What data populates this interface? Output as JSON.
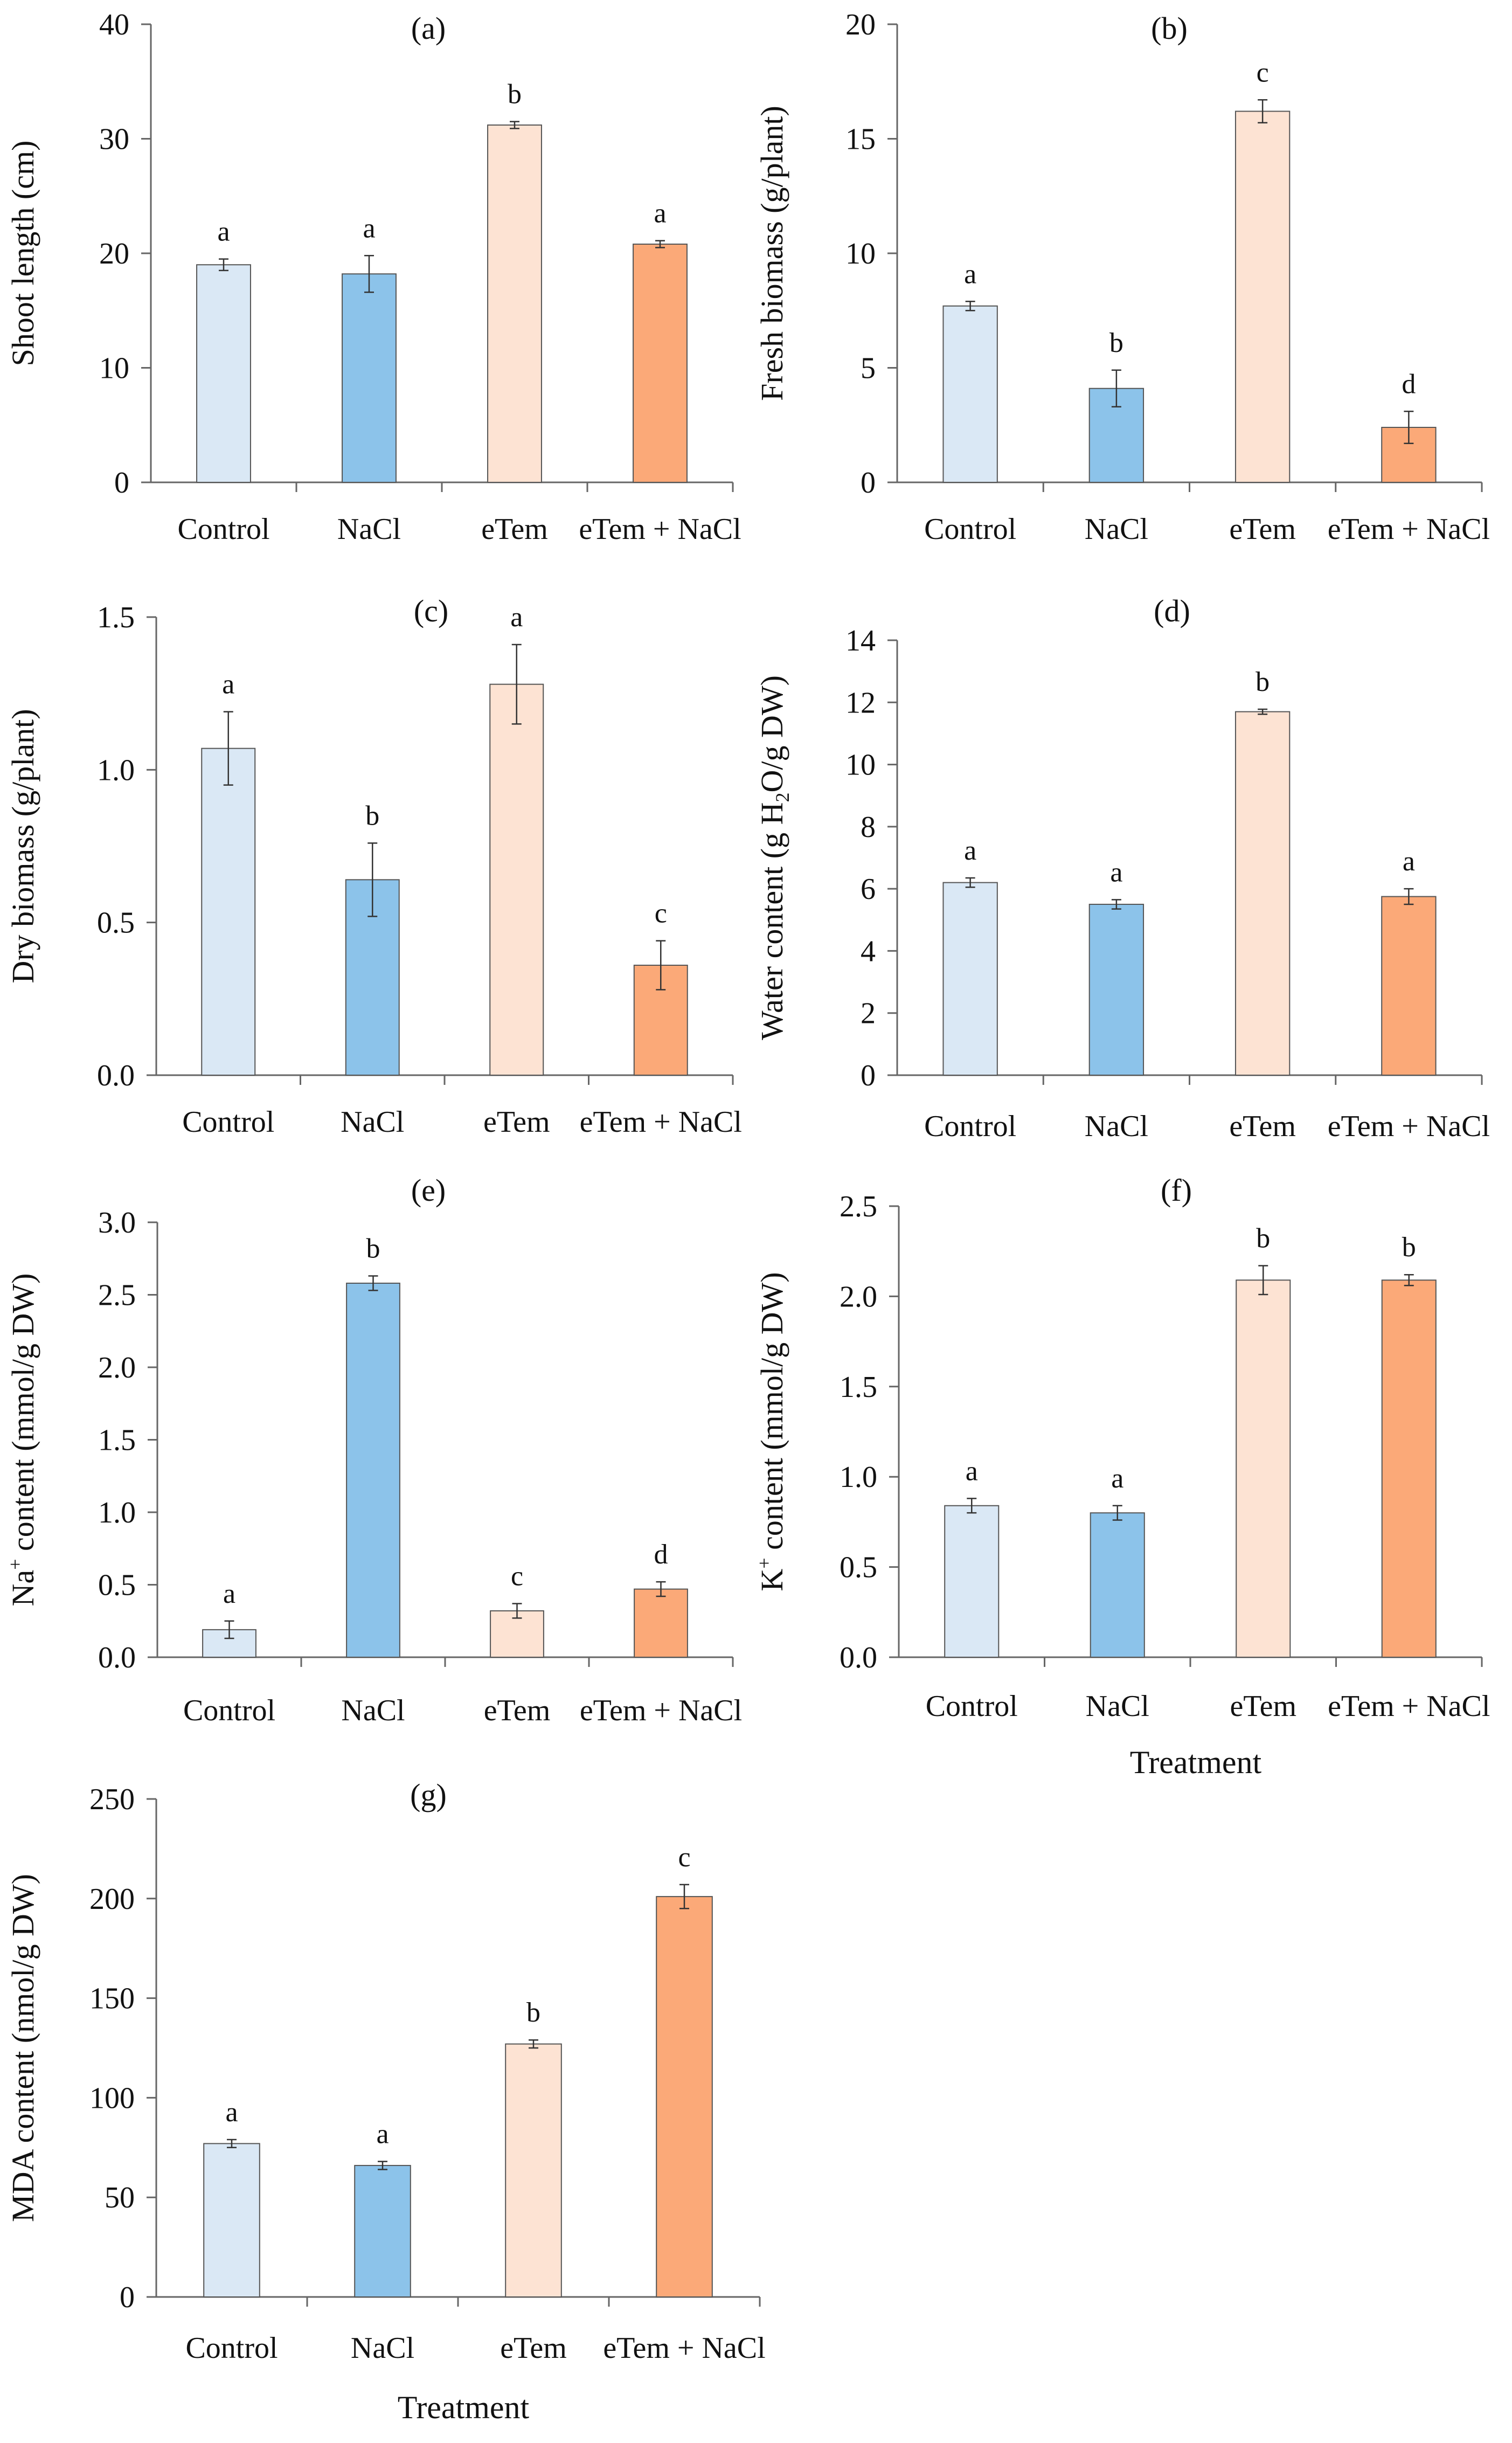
{
  "colors": {
    "Control": "#dae8f5",
    "NaCl": "#8cc3ea",
    "eTem": "#fde3d3",
    "eTem + NaCl": "#fba978",
    "bar_stroke": "#555555",
    "axis": "#666666"
  },
  "chart_data": [
    {
      "id": "a",
      "type": "bar",
      "title": "(a)",
      "ylabel": "Shoot length (cm)",
      "xlabel": "",
      "ylim": [
        0,
        40
      ],
      "yticks": [
        0,
        10,
        20,
        30,
        40
      ],
      "ytick_labels": [
        "0",
        "10",
        "20",
        "30",
        "40"
      ],
      "categories": [
        "Control",
        "NaCl",
        "eTem",
        "eTem + NaCl"
      ],
      "values": [
        19.0,
        18.2,
        31.2,
        20.8
      ],
      "errors": [
        0.5,
        1.6,
        0.3,
        0.3
      ],
      "letters": [
        "a",
        "a",
        "b",
        "a"
      ]
    },
    {
      "id": "b",
      "type": "bar",
      "title": "(b)",
      "ylabel": "Fresh biomass (g/plant)",
      "xlabel": "",
      "ylim": [
        0,
        20
      ],
      "yticks": [
        0,
        5,
        10,
        15,
        20
      ],
      "ytick_labels": [
        "0",
        "5",
        "10",
        "15",
        "20"
      ],
      "categories": [
        "Control",
        "NaCl",
        "eTem",
        "eTem + NaCl"
      ],
      "values": [
        7.7,
        4.1,
        16.2,
        2.4
      ],
      "errors": [
        0.2,
        0.8,
        0.5,
        0.7
      ],
      "letters": [
        "a",
        "b",
        "c",
        "d"
      ]
    },
    {
      "id": "c",
      "type": "bar",
      "title": "(c)",
      "ylabel": "Dry biomass (g/plant)",
      "xlabel": "",
      "ylim": [
        0,
        1.5
      ],
      "yticks": [
        0,
        0.5,
        1.0,
        1.5
      ],
      "ytick_labels": [
        "0.0",
        "0.5",
        "1.0",
        "1.5"
      ],
      "categories": [
        "Control",
        "NaCl",
        "eTem",
        "eTem + NaCl"
      ],
      "values": [
        1.07,
        0.64,
        1.28,
        0.36
      ],
      "errors": [
        0.12,
        0.12,
        0.13,
        0.08
      ],
      "letters": [
        "a",
        "b",
        "a",
        "c"
      ]
    },
    {
      "id": "d",
      "type": "bar",
      "title": "(d)",
      "ylabel_parts": [
        "Water content (g H",
        "2",
        "O/g DW)"
      ],
      "xlabel": "",
      "ylim": [
        0,
        14
      ],
      "yticks": [
        0,
        2,
        4,
        6,
        8,
        10,
        12,
        14
      ],
      "ytick_labels": [
        "0",
        "2",
        "4",
        "6",
        "8",
        "10",
        "12",
        "14"
      ],
      "categories": [
        "Control",
        "NaCl",
        "eTem",
        "eTem + NaCl"
      ],
      "values": [
        6.2,
        5.5,
        11.7,
        5.75
      ],
      "errors": [
        0.15,
        0.15,
        0.08,
        0.25
      ],
      "letters": [
        "a",
        "a",
        "b",
        "a"
      ]
    },
    {
      "id": "e",
      "type": "bar",
      "title": "(e)",
      "ylabel_parts": [
        "Na",
        "+",
        " content (mmol/g DW)"
      ],
      "xlabel": "",
      "ylim": [
        0,
        3.0
      ],
      "yticks": [
        0,
        0.5,
        1.0,
        1.5,
        2.0,
        2.5,
        3.0
      ],
      "ytick_labels": [
        "0.0",
        "0.5",
        "1.0",
        "1.5",
        "2.0",
        "2.5",
        "3.0"
      ],
      "categories": [
        "Control",
        "NaCl",
        "eTem",
        "eTem + NaCl"
      ],
      "values": [
        0.19,
        2.58,
        0.32,
        0.47
      ],
      "errors": [
        0.06,
        0.05,
        0.05,
        0.05
      ],
      "letters": [
        "a",
        "b",
        "c",
        "d"
      ]
    },
    {
      "id": "f",
      "type": "bar",
      "title": "(f)",
      "ylabel_parts": [
        "K",
        "+",
        " content (mmol/g DW)"
      ],
      "xlabel": "Treatment",
      "ylim": [
        0,
        2.5
      ],
      "yticks": [
        0,
        0.5,
        1.0,
        1.5,
        2.0,
        2.5
      ],
      "ytick_labels": [
        "0.0",
        "0.5",
        "1.0",
        "1.5",
        "2.0",
        "2.5"
      ],
      "categories": [
        "Control",
        "NaCl",
        "eTem",
        "eTem + NaCl"
      ],
      "values": [
        0.84,
        0.8,
        2.09,
        2.09
      ],
      "errors": [
        0.04,
        0.04,
        0.08,
        0.03
      ],
      "letters": [
        "a",
        "a",
        "b",
        "b"
      ]
    },
    {
      "id": "g",
      "type": "bar",
      "title": "(g)",
      "ylabel": "MDA content (nmol/g DW)",
      "xlabel": "Treatment",
      "ylim": [
        0,
        250
      ],
      "yticks": [
        0,
        50,
        100,
        150,
        200,
        250
      ],
      "ytick_labels": [
        "0",
        "50",
        "100",
        "150",
        "200",
        "250"
      ],
      "categories": [
        "Control",
        "NaCl",
        "eTem",
        "eTem + NaCl"
      ],
      "values": [
        77,
        66,
        127,
        201
      ],
      "errors": [
        2,
        2,
        2,
        6
      ],
      "letters": [
        "a",
        "a",
        "b",
        "c"
      ]
    }
  ]
}
